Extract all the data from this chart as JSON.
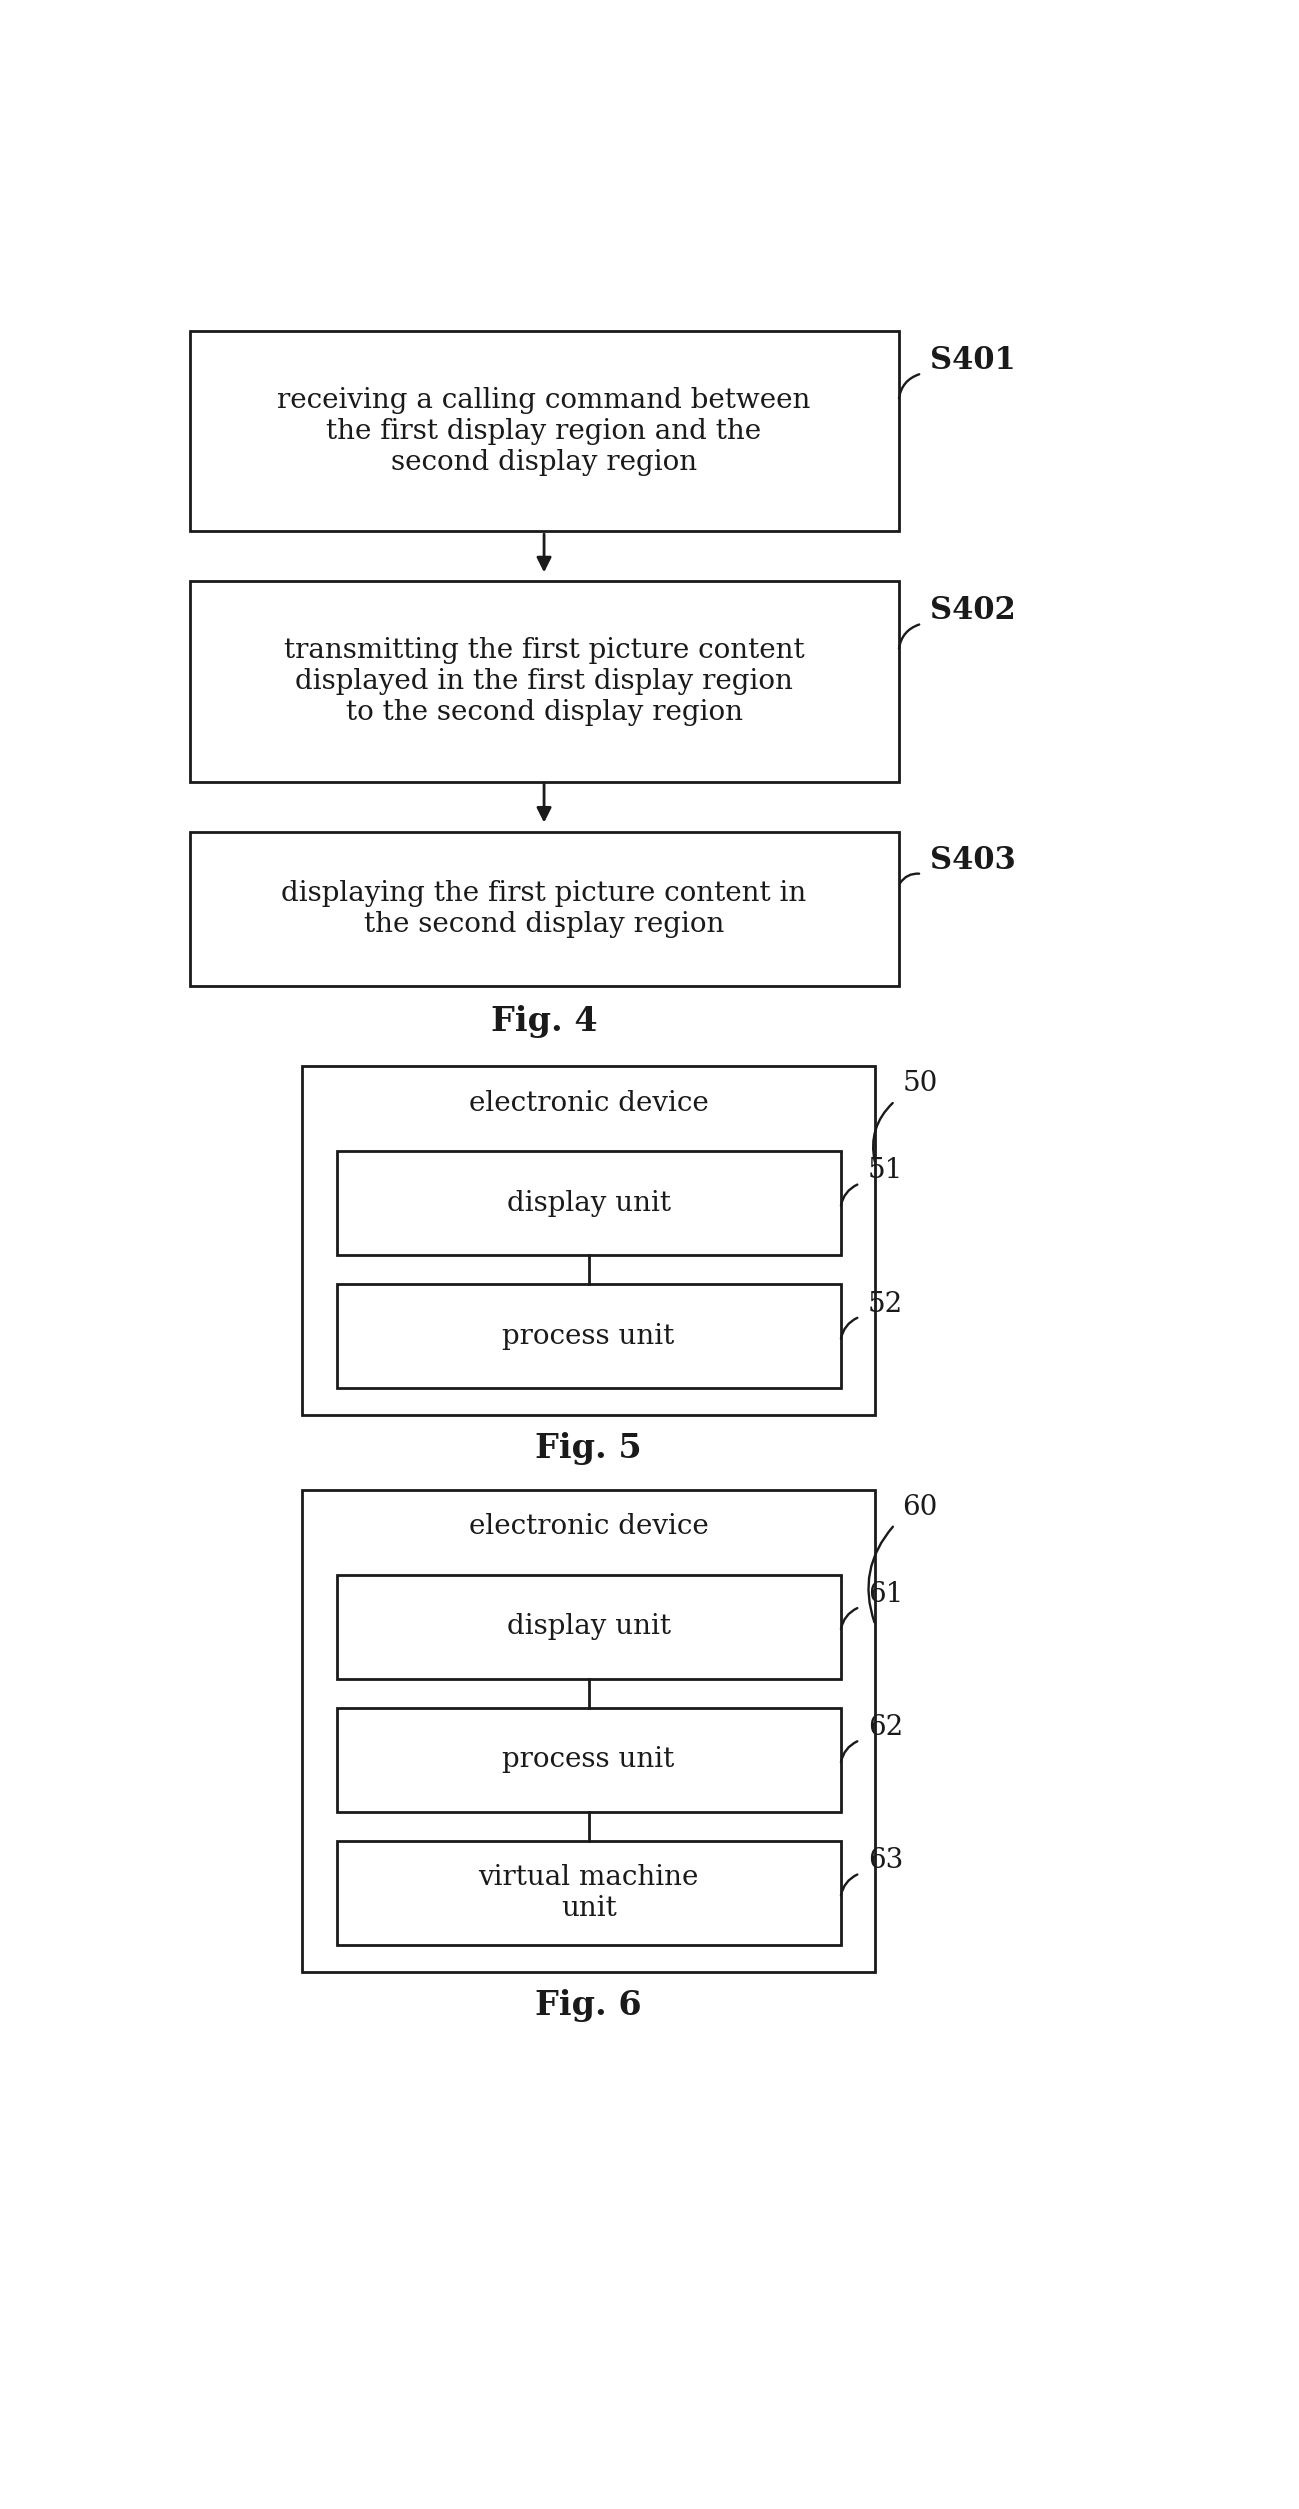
{
  "fig4": {
    "title": "Fig. 4",
    "steps": [
      {
        "label": "receiving a calling command between\nthe first display region and the\nsecond display region",
        "step_id": "S401"
      },
      {
        "label": "transmitting the first picture content\ndisplayed in the first display region\nto the second display region",
        "step_id": "S402"
      },
      {
        "label": "displaying the first picture content in\nthe second display region",
        "step_id": "S403"
      }
    ]
  },
  "fig5": {
    "title": "Fig. 5",
    "outer_label": "electronic device",
    "outer_id": "50",
    "boxes": [
      {
        "label": "display unit",
        "id": "51"
      },
      {
        "label": "process unit",
        "id": "52"
      }
    ]
  },
  "fig6": {
    "title": "Fig. 6",
    "outer_label": "electronic device",
    "outer_id": "60",
    "boxes": [
      {
        "label": "display unit",
        "id": "61"
      },
      {
        "label": "process unit",
        "id": "62"
      },
      {
        "label": "virtual machine\nunit",
        "id": "63"
      }
    ]
  },
  "bg_color": "#ffffff",
  "box_edge_color": "#1a1a1a",
  "text_color": "#1a1a1a",
  "arrow_color": "#1a1a1a",
  "line_width": 2.0,
  "font_size_step": 20,
  "font_size_box_label": 20,
  "font_size_id_fig4": 22,
  "font_size_id_fig56": 20,
  "font_size_title": 24
}
